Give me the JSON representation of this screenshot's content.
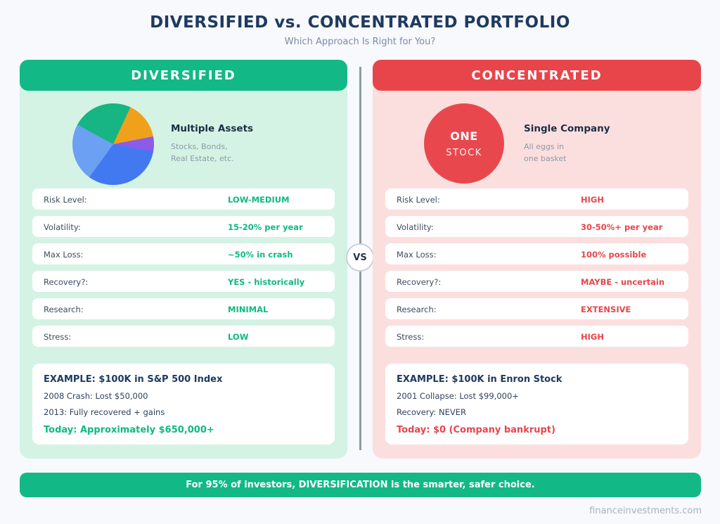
{
  "page": {
    "title": "DIVERSIFIED vs. CONCENTRATED PORTFOLIO",
    "subtitle": "Which Approach Is Right for You?",
    "vs_label": "VS",
    "banner": "For 95% of investors, DIVERSIFICATION is the smarter, safer choice.",
    "footer": "financeinvestments.com"
  },
  "colors": {
    "green": "#13b887",
    "green_light": "#d4f3e4",
    "green_value_text": "#10b981",
    "red": "#e8454b",
    "red_light": "#fbdfde",
    "navy": "#1f3a60",
    "page_bg": "#f7f9fc",
    "divider_gray": "#8c9cae"
  },
  "diversified": {
    "header": "DIVERSIFIED",
    "visual": {
      "title": "Multiple Assets",
      "subtitle_line1": "Stocks, Bonds,",
      "subtitle_line2": "Real Estate, etc."
    },
    "rows": [
      {
        "label": "Risk Level:",
        "value": "LOW-MEDIUM"
      },
      {
        "label": "Volatility:",
        "value": "15-20% per year"
      },
      {
        "label": "Max Loss:",
        "value": "~50% in crash"
      },
      {
        "label": "Recovery?:",
        "value": "YES - historically"
      },
      {
        "label": "Research:",
        "value": "MINIMAL"
      },
      {
        "label": "Stress:",
        "value": "LOW"
      }
    ],
    "example": {
      "title": "EXAMPLE: $100K in S&P 500 Index",
      "line1": "2008 Crash: Lost $50,000",
      "line2": "2013: Fully recovered + gains",
      "highlight": "Today: Approximately $650,000+"
    }
  },
  "concentrated": {
    "header": "CONCENTRATED",
    "visual": {
      "circle_line1": "ONE",
      "circle_line2": "STOCK",
      "title": "Single Company",
      "subtitle_line1": "All eggs in",
      "subtitle_line2": "one basket"
    },
    "rows": [
      {
        "label": "Risk Level:",
        "value": "HIGH"
      },
      {
        "label": "Volatility:",
        "value": "30-50%+ per year"
      },
      {
        "label": "Max Loss:",
        "value": "100% possible"
      },
      {
        "label": "Recovery?:",
        "value": "MAYBE - uncertain"
      },
      {
        "label": "Research:",
        "value": "EXTENSIVE"
      },
      {
        "label": "Stress:",
        "value": "HIGH"
      }
    ],
    "example": {
      "title": "EXAMPLE: $100K in Enron Stock",
      "line1": "2001 Collapse: Lost $99,000+",
      "line2": "Recovery: NEVER",
      "highlight": "Today: $0 (Company bankrupt)"
    }
  },
  "chart_data": {
    "type": "pie",
    "title": "Multiple Assets allocation pie (decorative, unlabeled)",
    "start_angle_deg": 25,
    "legend": "none",
    "segments": [
      {
        "name": "orange-slice",
        "color": "#f0a11b",
        "percent": 15
      },
      {
        "name": "purple-slice",
        "color": "#8a5ce8",
        "percent": 6
      },
      {
        "name": "royal-blue-slice",
        "color": "#4279f0",
        "percent": 32
      },
      {
        "name": "light-blue-slice",
        "color": "#6ba0f2",
        "percent": 23
      },
      {
        "name": "green-slice",
        "color": "#16b583",
        "percent": 24
      }
    ]
  }
}
